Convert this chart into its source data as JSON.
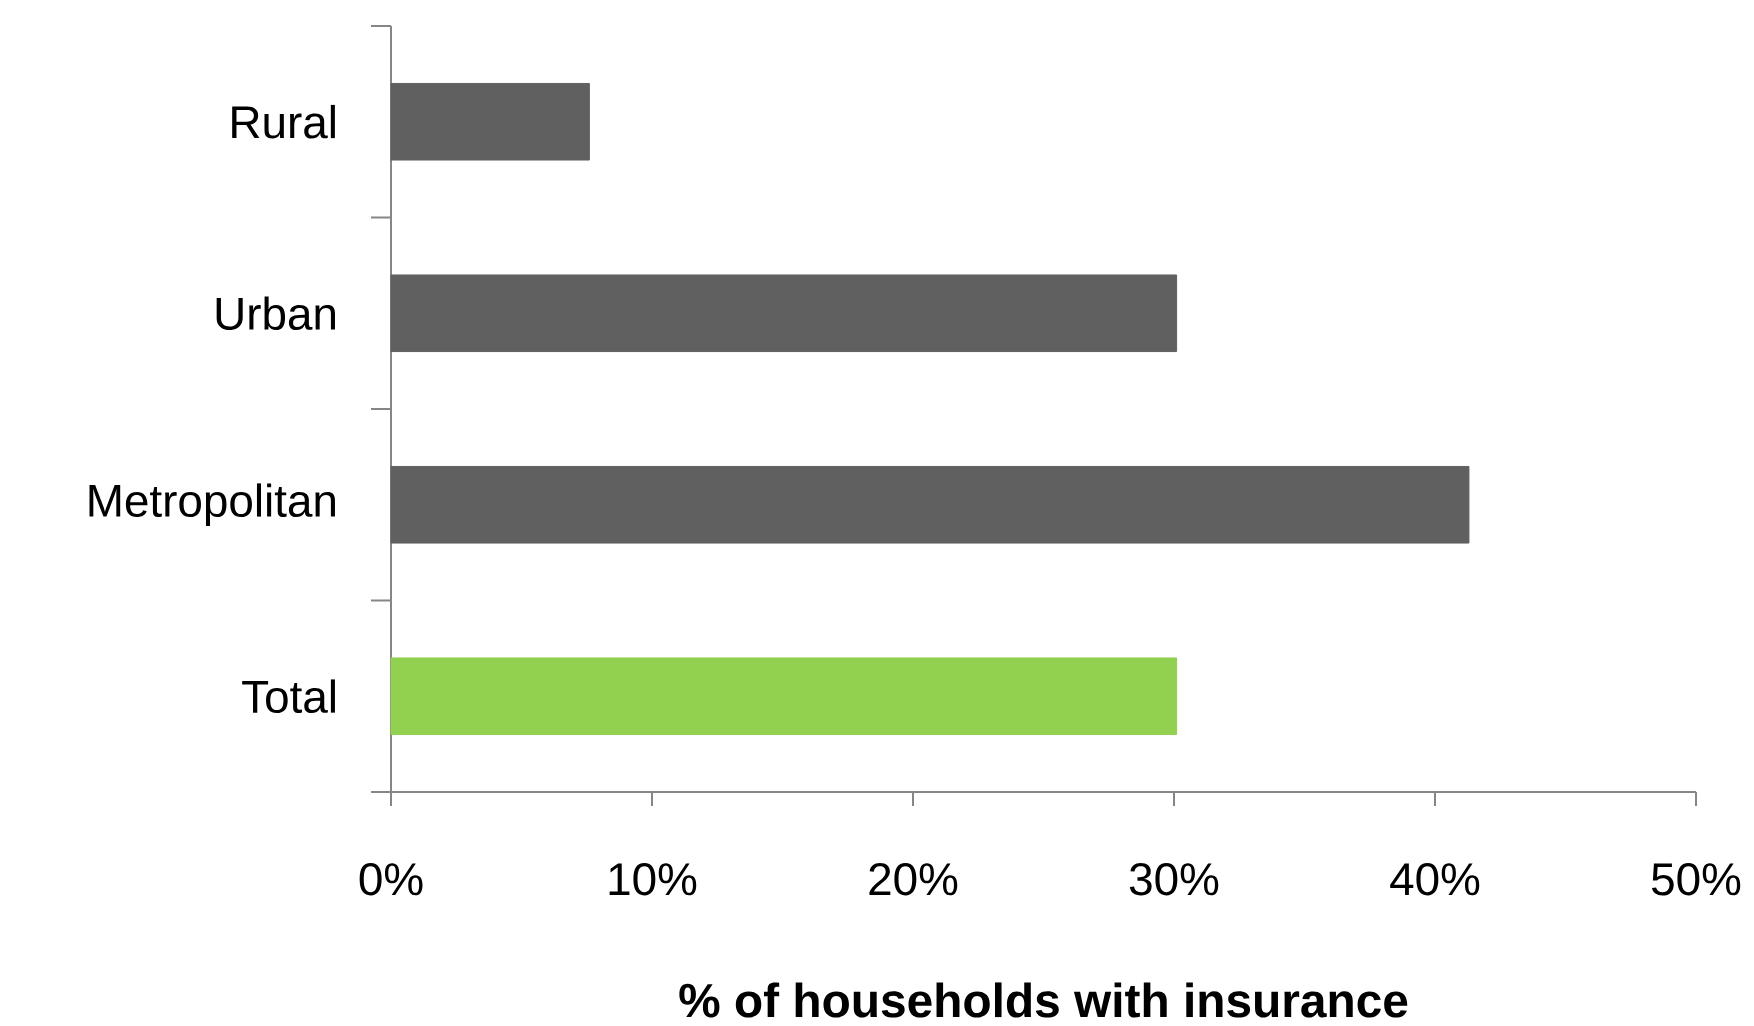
{
  "chart_data": {
    "type": "bar",
    "orientation": "horizontal",
    "categories": [
      "Rural",
      "Urban",
      "Metropolitan",
      "Total"
    ],
    "values": [
      7.6,
      30.1,
      41.3,
      30.1
    ],
    "colors": [
      "#606060",
      "#606060",
      "#606060",
      "#92d050"
    ],
    "xlabel": "% of households with insurance",
    "xlim": [
      0,
      50
    ],
    "xticks": [
      {
        "value": 0,
        "label": "0%"
      },
      {
        "value": 10,
        "label": "10%"
      },
      {
        "value": 20,
        "label": "20%"
      },
      {
        "value": 30,
        "label": "30%"
      },
      {
        "value": 40,
        "label": "40%"
      },
      {
        "value": 50,
        "label": "50%"
      }
    ]
  }
}
